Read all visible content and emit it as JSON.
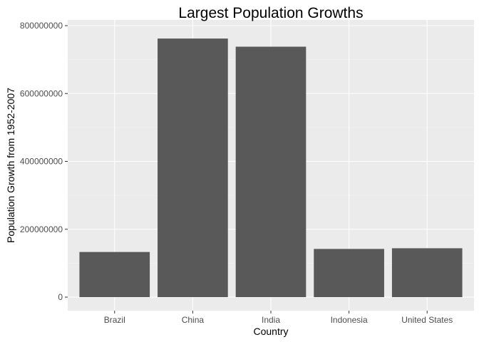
{
  "chart_data": {
    "type": "bar",
    "title": "Largest Population Growths",
    "xlabel": "Country",
    "ylabel": "Population Growth from 1952-2007",
    "categories": [
      "Brazil",
      "China",
      "India",
      "Indonesia",
      "United States"
    ],
    "values": [
      133000000,
      762000000,
      738000000,
      142000000,
      144000000
    ],
    "ylim": [
      0,
      800000000
    ],
    "yticks": [
      0,
      200000000,
      400000000,
      600000000,
      800000000
    ],
    "ytick_labels": [
      "0",
      "200000000",
      "400000000",
      "600000000",
      "800000000"
    ],
    "grid": true,
    "legend": "none",
    "colors": {
      "bar": "#595959",
      "panel": "#EBEBEB",
      "grid": "#FFFFFF"
    }
  }
}
